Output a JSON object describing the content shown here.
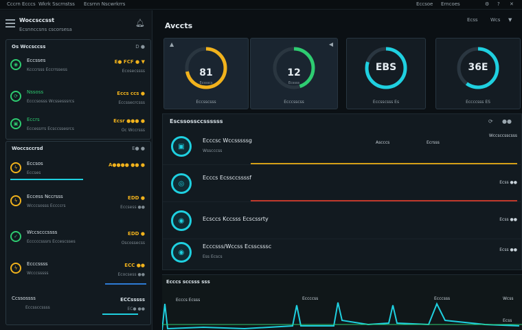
{
  "topbar": {
    "left": [
      "Cccrn Ecccs",
      "Wkrk Sscrnstss",
      "Ecsrnn Nscwrkrrs"
    ],
    "right": [
      "Eccsoe",
      "Erncoes"
    ]
  },
  "sidebar": {
    "title": "Woccsccsst",
    "subtitle": "Ecsnnccsns cscorsesa",
    "panel1": {
      "title": "Os Wccsccss",
      "more": "D ●",
      "rows": [
        {
          "l1": "Eccsses",
          "l2": "Kcccrsss Eccrrssess",
          "val": "E● FCF ● ▼",
          "sub": "Ecosecssss",
          "icon": "shield-icon"
        },
        {
          "l1": "Nssoss",
          "l2": "Ecccsosss Wcssesssrcs",
          "val": "Eccs ccs ●",
          "sub": "Eccssecrcsss",
          "icon": "sync-icon"
        },
        {
          "l1": "Eccrs",
          "l2": "Eccessrrs Ecsccssesrcs",
          "val": "Ecsr ●●● ●",
          "sub": "Oc Wccrsss",
          "icon": "lock-icon"
        }
      ]
    },
    "panel2": {
      "title": "Woccsccrsd",
      "more": "E● ●",
      "rows": [
        {
          "l1": "Eccsos",
          "l2": "Eccses",
          "val": "A●●●● ●● ●",
          "sub": "",
          "icon": "bolt-icon",
          "bar": 0.55
        },
        {
          "l1": "Eccess Nccrsss",
          "l2": "Wcccsosss Eccccrs",
          "val": "EDD ●",
          "sub": "Eccsess ●●",
          "icon": "bolt-icon"
        },
        {
          "l1": "Wccscccssss",
          "l2": "Ecccccsssrs Eccescsses",
          "val": "EDD ●",
          "sub": "Oscossecss",
          "icon": "check-icon"
        },
        {
          "l1": "Ecccssss",
          "l2": "Wcccsssss",
          "val": "ECC ●●",
          "sub": "Ecocsess ●●",
          "icon": "bolt-icon",
          "bar": 0.3
        },
        {
          "l1": "Ccssossss",
          "l2": "Eccssccssss",
          "val": "ECCsssss",
          "sub": "EC● ●●",
          "icon": "",
          "bar": 0.25
        }
      ]
    }
  },
  "main": {
    "title": "Avccts",
    "topright": [
      "Ecss",
      "Wcs",
      "▼"
    ],
    "gauges": [
      {
        "value": "81",
        "label": "Ecssscs",
        "caption": "Eccsscsss",
        "percent": 0.72,
        "color": "#f1b21c",
        "corner": "▲"
      },
      {
        "value": "12",
        "label": "Ecssss",
        "caption": "Ecccsscss",
        "percent": 0.45,
        "color": "#2ecc71",
        "corner": "◀"
      },
      {
        "value": "EBS",
        "label": "",
        "caption": "Eccsscsss Es",
        "percent": 0.8,
        "color": "#1fd0e0",
        "corner": ""
      },
      {
        "value": "36E",
        "label": "",
        "caption": "Eccccsss ES",
        "percent": 0.6,
        "color": "#1fd0e0",
        "corner": ""
      }
    ],
    "list": {
      "title": "Escssossccssssss",
      "icons": [
        "⟳",
        "●●"
      ],
      "items": [
        {
          "t1": "Ecccsc Wccsssssg",
          "t2": "Wsscccss",
          "c1": "Ascccs",
          "c2": "Ecrsss",
          "r": "Wccsccsscsss",
          "line": "#d4a017"
        },
        {
          "t1": "Ecccs Ecssccssssf",
          "t2": "",
          "c1": "",
          "c2": "",
          "r": "Ecss ●●",
          "line": "#c0392b"
        },
        {
          "t1": "Ecsccs Kccsss Ecscssrty",
          "t2": "",
          "c1": "",
          "c2": "",
          "r": "Ecss ●●",
          "line": ""
        },
        {
          "t1": "Ecccsss/Wccss Ecsscsssc",
          "t2": "Ess Ecscs",
          "c1": "",
          "c2": "",
          "r": "Ecss ●●",
          "line": ""
        }
      ]
    },
    "chart": {
      "title": "Ecccs sccsss sss",
      "labels": [
        "Ecccs Ecsss",
        "Eccccss",
        "Ecccsss"
      ],
      "right": [
        "Wcss",
        "Ecss"
      ]
    }
  }
}
